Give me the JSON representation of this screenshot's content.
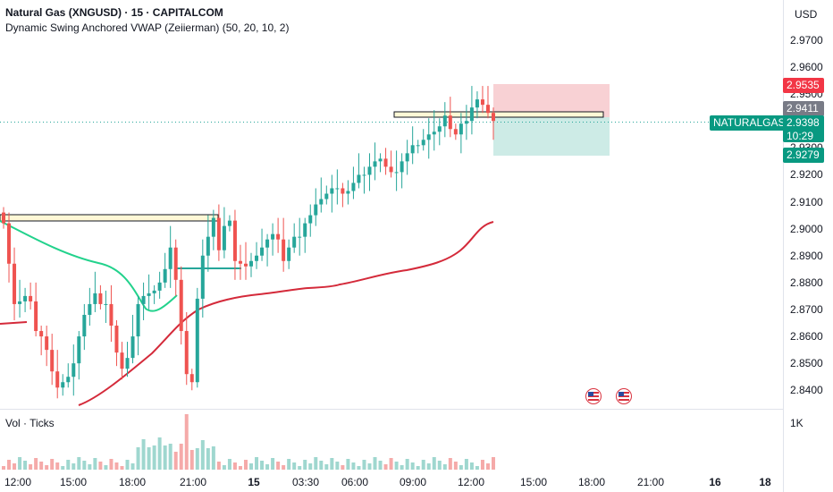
{
  "header": {
    "symbol_title": "Natural Gas (XNGUSD) · 15 · CAPITALCOM",
    "indicator_title": "Dynamic Swing Anchored VWAP (Zeiierman) (50, 20, 10, 2)"
  },
  "currency": "USD",
  "volume_label": "Vol · Ticks",
  "volume_axis_label": "1K",
  "price_tags": {
    "stop": "2.9535",
    "entry": "2.9411",
    "symbol": "NATURALGAS",
    "last": "2.9398",
    "countdown": "10:29",
    "target": "2.9279"
  },
  "colors": {
    "up": "#26a69a",
    "down": "#ef5350",
    "vwap_red": "#d42a3a",
    "vwap_green": "#22d28c",
    "stop_zone": "#f7c9cc",
    "target_zone": "#c8e9e3"
  },
  "chart_data": {
    "type": "candlestick",
    "y_axis_ticks": [
      "2.9700",
      "2.9600",
      "2.9500",
      "2.9400",
      "2.9300",
      "2.9200",
      "2.9100",
      "2.9000",
      "2.8900",
      "2.8800",
      "2.8700",
      "2.8600",
      "2.8500",
      "2.8400"
    ],
    "ylim": [
      2.836,
      2.975
    ],
    "x_axis_ticks": [
      "12:00",
      "15:00",
      "18:00",
      "21:00",
      "15",
      "03:30",
      "06:00",
      "09:00",
      "12:00",
      "15:00",
      "18:00",
      "21:00",
      "16",
      "18"
    ],
    "candles_close": [
      2.902,
      2.887,
      2.872,
      2.873,
      2.875,
      2.873,
      2.862,
      2.86,
      2.855,
      2.847,
      2.841,
      2.843,
      2.845,
      2.85,
      2.86,
      2.868,
      2.872,
      2.876,
      2.872,
      2.872,
      2.864,
      2.854,
      2.848,
      2.852,
      2.86,
      2.872,
      2.875,
      2.876,
      2.877,
      2.88,
      2.885,
      2.893,
      2.881,
      2.862,
      2.846,
      2.843,
      2.874,
      2.89,
      2.897,
      2.904,
      2.892,
      2.901,
      2.903,
      2.888,
      2.887,
      2.886,
      2.888,
      2.89,
      2.893,
      2.896,
      2.898,
      2.896,
      2.888,
      2.893,
      2.897,
      2.897,
      2.902,
      2.905,
      2.909,
      2.911,
      2.913,
      2.915,
      2.915,
      2.913,
      2.914,
      2.917,
      2.92,
      2.92,
      2.923,
      2.925,
      2.926,
      2.923,
      2.921,
      2.921,
      2.925,
      2.928,
      2.931,
      2.931,
      2.933,
      2.935,
      2.936,
      2.938,
      2.942,
      2.937,
      2.935,
      2.939,
      2.94,
      2.945,
      2.948,
      2.946,
      2.943,
      2.94
    ],
    "series": [
      {
        "name": "Dynamic Swing Anchored VWAP"
      }
    ]
  }
}
